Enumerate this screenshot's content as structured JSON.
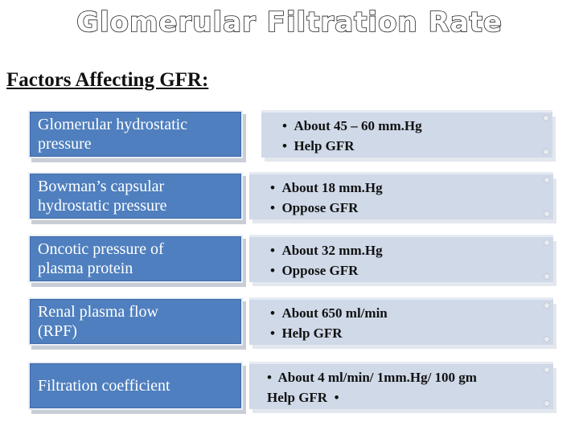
{
  "slide": {
    "title": "Glomerular Filtration Rate",
    "subtitle": "Factors Affecting GFR:"
  },
  "factors": [
    {
      "name": "Glomerular hydrostatic\npressure",
      "details": [
        "About 45 – 60 mm.Hg",
        "Help GFR"
      ]
    },
    {
      "name": "Bowman’s capsular\nhydrostatic pressure",
      "details": [
        "About 18 mm.Hg",
        "Oppose GFR"
      ]
    },
    {
      "name": "Oncotic pressure of\nplasma protein",
      "details": [
        "About 32 mm.Hg",
        "Oppose GFR"
      ]
    },
    {
      "name": "Renal plasma flow\n(RPF)",
      "details": [
        "About 650 ml/min",
        "Help GFR"
      ]
    },
    {
      "name": "Filtration coefficient",
      "detail_line1": "•  About 4 ml/min/ 1mm.Hg/ 100 gm",
      "detail_line2": "Help GFR  •"
    }
  ],
  "colors": {
    "left_fill": "#4f7fbe",
    "right_fill": "#cfd9e8",
    "title_outline": "#222222"
  }
}
